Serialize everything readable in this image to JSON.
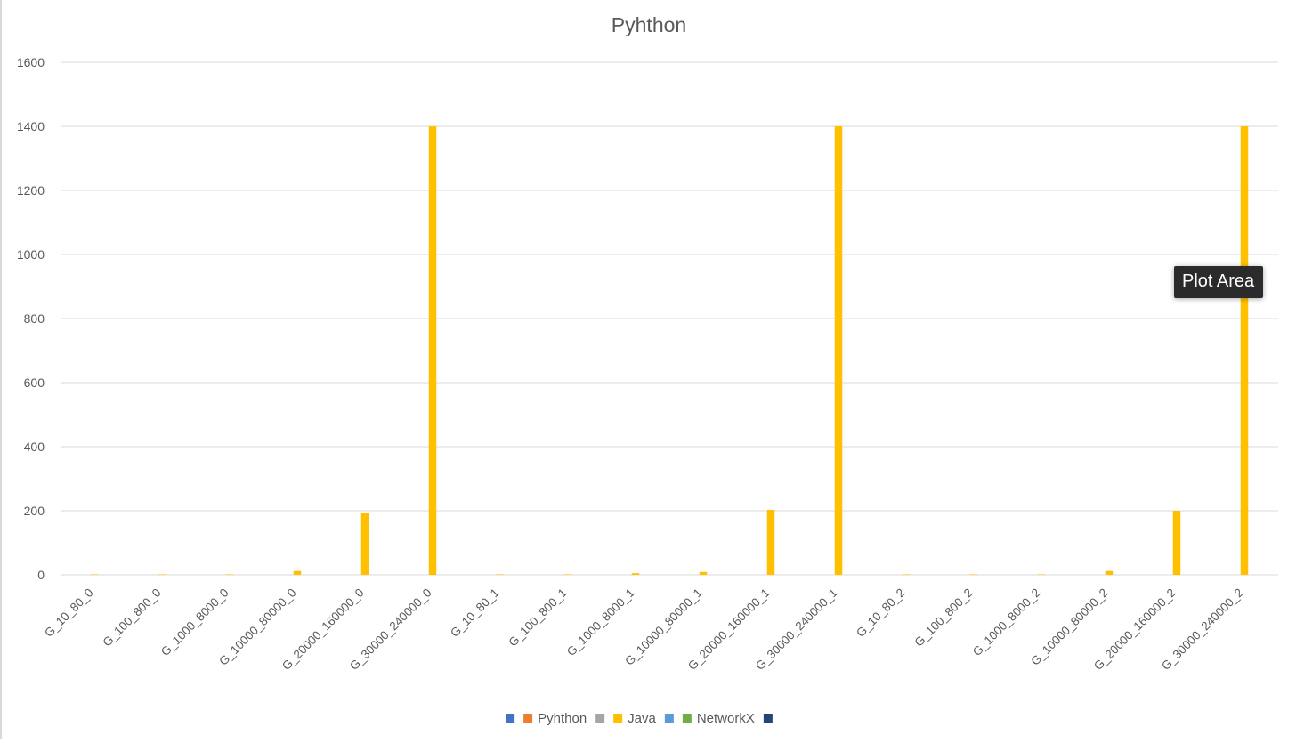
{
  "tooltip": "Plot Area",
  "colors": {
    "grid": "#d9d9d9",
    "axis_text": "#595959",
    "title_text": "#595959"
  },
  "chart_data": {
    "type": "bar",
    "title": "Pyhthon",
    "xlabel": "",
    "ylabel": "",
    "ylim": [
      0,
      1600
    ],
    "yticks": [
      0,
      200,
      400,
      600,
      800,
      1000,
      1200,
      1400,
      1600
    ],
    "grid": true,
    "legend_position": "bottom",
    "categories": [
      "G_10_80_0",
      "G_100_800_0",
      "G_1000_8000_0",
      "G_10000_80000_0",
      "G_20000_160000_0",
      "G_30000_240000_0",
      "G_10_80_1",
      "G_100_800_1",
      "G_1000_8000_1",
      "G_10000_80000_1",
      "G_20000_160000_1",
      "G_30000_240000_1",
      "G_10_80_2",
      "G_100_800_2",
      "G_1000_8000_2",
      "G_10000_80000_2",
      "G_20000_160000_2",
      "G_30000_240000_2"
    ],
    "series": [
      {
        "name": "",
        "color": "#4472c4",
        "values": [
          0,
          0,
          0,
          0,
          0,
          0,
          0,
          0,
          0,
          0,
          0,
          0,
          0,
          0,
          0,
          0,
          0,
          0
        ]
      },
      {
        "name": "Pyhthon",
        "color": "#ed7d31",
        "values": [
          0,
          0,
          0,
          0,
          0,
          0,
          0,
          0,
          0,
          0,
          0,
          0,
          0,
          0,
          0,
          0,
          0,
          0
        ]
      },
      {
        "name": "",
        "color": "#a5a5a5",
        "values": [
          0,
          0,
          0,
          0,
          0,
          0,
          0,
          0,
          0,
          0,
          0,
          0,
          0,
          0,
          0,
          0,
          0,
          0
        ]
      },
      {
        "name": "Java",
        "color": "#ffc000",
        "values": [
          0.2,
          0.3,
          1,
          12,
          192,
          1400,
          0.2,
          0.3,
          5,
          9,
          203,
          1400,
          0.2,
          0.3,
          1,
          12,
          200,
          1400
        ]
      },
      {
        "name": "",
        "color": "#5b9bd5",
        "values": [
          0,
          0,
          0,
          0,
          0,
          0,
          0,
          0,
          0,
          0,
          0,
          0,
          0,
          0,
          0,
          0,
          0,
          0
        ]
      },
      {
        "name": "NetworkX",
        "color": "#70ad47",
        "values": [
          0,
          0,
          0,
          0,
          0,
          0,
          0,
          0,
          0,
          0,
          0,
          0,
          0,
          0,
          0,
          0,
          0,
          0
        ]
      },
      {
        "name": "",
        "color": "#264478",
        "values": [
          0,
          0,
          0,
          0,
          0,
          0,
          0,
          0,
          0,
          0,
          0,
          0,
          0,
          0,
          0,
          0,
          0,
          0
        ]
      }
    ]
  }
}
